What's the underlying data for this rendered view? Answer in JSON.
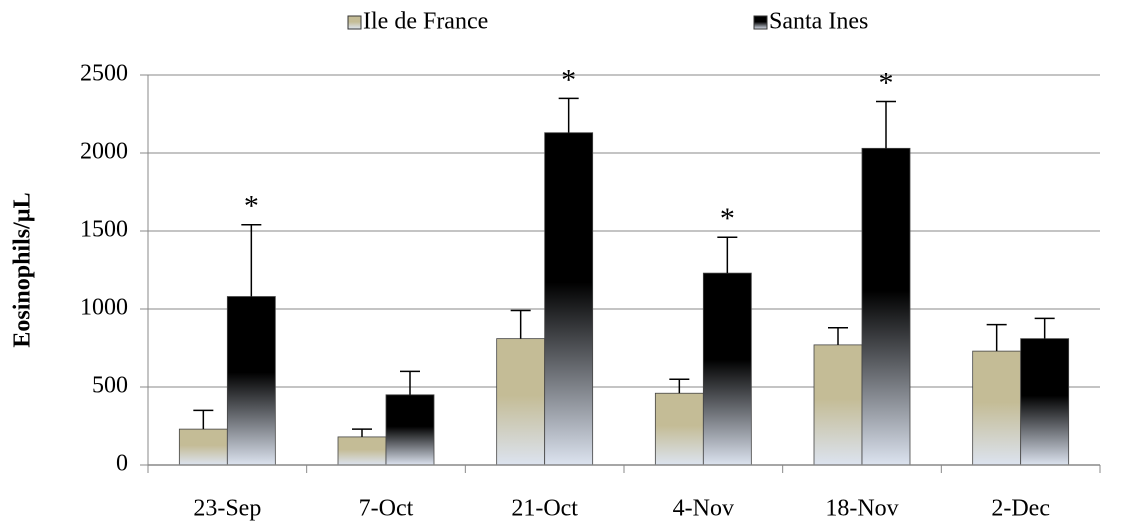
{
  "chart_data": {
    "type": "bar",
    "y_label": "Eosinophils/µL",
    "categories": [
      "23-Sep",
      "7-Oct",
      "21-Oct",
      "4-Nov",
      "18-Nov",
      "2-Dec"
    ],
    "series": [
      {
        "name": "Ile de France",
        "color": "#c4bc96",
        "values": [
          230,
          180,
          810,
          460,
          770,
          730
        ],
        "errors": [
          120,
          50,
          180,
          90,
          110,
          170
        ]
      },
      {
        "name": "Santa Ines",
        "color": "#000000",
        "values": [
          1080,
          450,
          2130,
          1230,
          2030,
          810
        ],
        "errors": [
          460,
          150,
          220,
          230,
          300,
          130
        ]
      }
    ],
    "significance": [
      "*",
      null,
      "*",
      "*",
      "*",
      null
    ],
    "ylim": [
      0,
      2500
    ],
    "yticks": [
      0,
      500,
      1000,
      1500,
      2000,
      2500
    ],
    "grid": true,
    "legend": "top"
  }
}
